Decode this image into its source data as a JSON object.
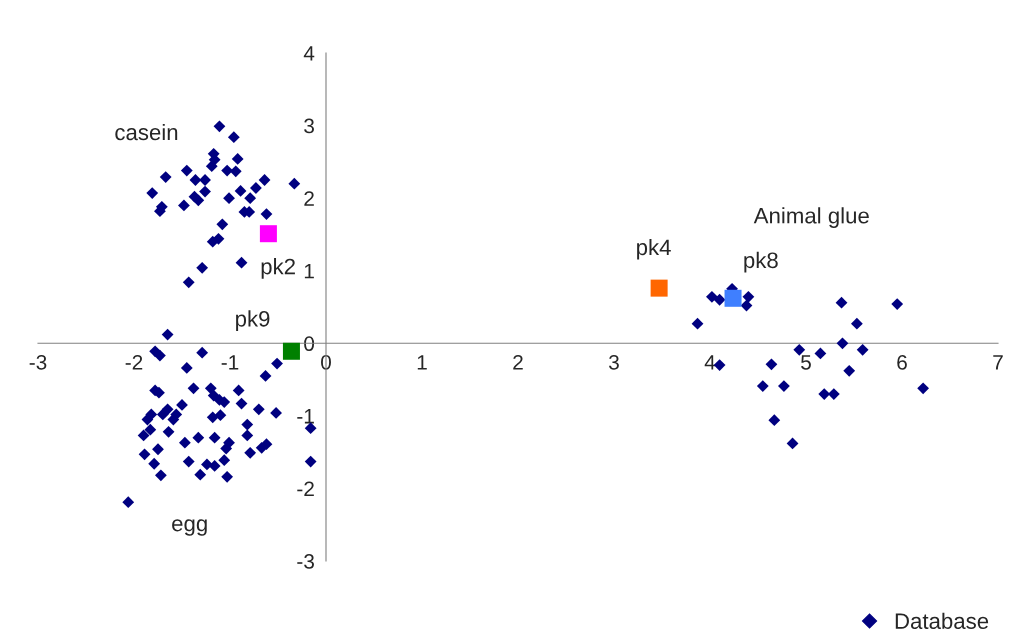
{
  "chart_data": {
    "type": "scatter",
    "xlim": [
      -3,
      7
    ],
    "ylim": [
      -3,
      4
    ],
    "xticks": [
      -3,
      -2,
      -1,
      0,
      1,
      2,
      3,
      4,
      5,
      6,
      7
    ],
    "yticks": [
      -3,
      -2,
      -1,
      0,
      1,
      2,
      3,
      4
    ],
    "grid": false,
    "legend": "bottom right",
    "series": [
      {
        "name": "Database",
        "color": "#000080",
        "marker": "diamond",
        "x": [
          -1.11,
          -0.96,
          -1.17,
          -1.16,
          -0.92,
          -1.19,
          -1.03,
          -0.94,
          -1.45,
          -1.67,
          -1.36,
          -1.26,
          -0.64,
          -0.33,
          -0.73,
          -0.89,
          -1.26,
          -1.81,
          -1.37,
          -0.79,
          -1.01,
          -1.33,
          -1.48,
          -1.71,
          -1.73,
          -0.85,
          -0.8,
          -0.62,
          -1.08,
          -1.12,
          -1.18,
          -0.88,
          -1.29,
          -1.43,
          -1.65,
          -1.78,
          -1.73,
          -1.29,
          -0.51,
          -1.45,
          -0.63,
          -1.38,
          -1.78,
          -1.74,
          -1.2,
          -0.91,
          -1.17,
          -1.11,
          -1.06,
          -0.88,
          -1.5,
          -0.7,
          -0.52,
          -1.65,
          -1.82,
          -1.7,
          -1.56,
          -1.59,
          -1.86,
          -1.18,
          -1.1,
          -0.82,
          -0.16,
          -1.83,
          -1.64,
          -1.9,
          -0.82,
          -1.33,
          -1.16,
          -1.47,
          -1.01,
          -0.62,
          -0.67,
          -1.04,
          -1.75,
          -1.89,
          -0.79,
          -1.06,
          -0.16,
          -1.43,
          -1.79,
          -1.24,
          -1.16,
          -1.31,
          -1.72,
          -1.03,
          -2.06,
          4.23,
          4.02,
          4.1,
          4.4,
          4.38,
          3.87,
          5.37,
          5.95,
          5.53,
          5.38,
          4.93,
          5.15,
          5.59,
          4.1,
          4.64,
          5.45,
          4.55,
          4.77,
          5.19,
          5.29,
          6.22,
          4.67,
          4.86
        ],
        "values": [
          2.99,
          2.84,
          2.61,
          2.53,
          2.54,
          2.44,
          2.38,
          2.37,
          2.38,
          2.29,
          2.25,
          2.25,
          2.25,
          2.2,
          2.14,
          2.1,
          2.09,
          2.07,
          2.02,
          2.0,
          2.0,
          1.97,
          1.9,
          1.88,
          1.82,
          1.81,
          1.81,
          1.78,
          1.64,
          1.44,
          1.4,
          1.11,
          1.04,
          0.84,
          0.12,
          -0.11,
          -0.17,
          -0.13,
          -0.28,
          -0.34,
          -0.45,
          -0.62,
          -0.65,
          -0.68,
          -0.62,
          -0.65,
          -0.72,
          -0.78,
          -0.81,
          -0.83,
          -0.85,
          -0.91,
          -0.96,
          -0.91,
          -0.98,
          -0.98,
          -0.98,
          -1.05,
          -1.05,
          -1.02,
          -0.99,
          -1.12,
          -1.17,
          -1.19,
          -1.22,
          -1.27,
          -1.27,
          -1.3,
          -1.3,
          -1.37,
          -1.37,
          -1.39,
          -1.44,
          -1.45,
          -1.46,
          -1.53,
          -1.51,
          -1.61,
          -1.63,
          -1.63,
          -1.66,
          -1.67,
          -1.69,
          -1.81,
          -1.82,
          -1.84,
          -2.19,
          0.75,
          0.64,
          0.6,
          0.64,
          0.52,
          0.27,
          0.56,
          0.54,
          0.27,
          0.0,
          -0.09,
          -0.14,
          -0.09,
          -0.3,
          -0.29,
          -0.38,
          -0.59,
          -0.59,
          -0.7,
          -0.7,
          -0.62,
          -1.06,
          -1.38
        ]
      },
      {
        "color": "#ff00ff",
        "marker": "square",
        "x": [
          -0.6
        ],
        "values": [
          1.51
        ]
      },
      {
        "color": "#008000",
        "marker": "square",
        "x": [
          -0.36
        ],
        "values": [
          -0.11
        ]
      },
      {
        "color": "#ff6600",
        "marker": "square",
        "x": [
          3.47
        ],
        "values": [
          0.76
        ]
      },
      {
        "color": "#3f7fff",
        "marker": "square",
        "x": [
          4.24
        ],
        "values": [
          0.62
        ]
      }
    ],
    "annotations": [
      "casein",
      "egg",
      "Animal glue",
      {
        "text": "pk2",
        "x": -0.6,
        "y": 1.51
      },
      {
        "text": "pk9",
        "x": -0.36,
        "y": -0.11
      },
      {
        "text": "pk4",
        "x": 3.47,
        "y": 0.76
      },
      {
        "text": "pk8",
        "x": 4.24,
        "y": 0.62
      }
    ]
  }
}
